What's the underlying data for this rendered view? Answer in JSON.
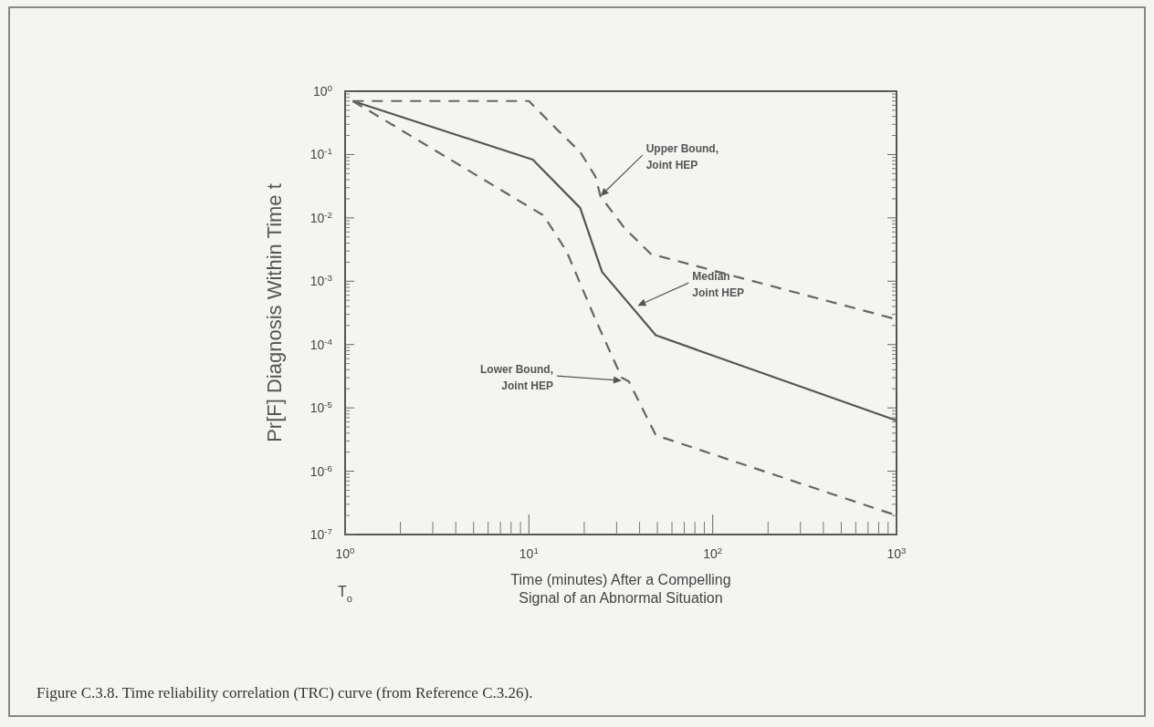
{
  "chart_data": {
    "type": "line",
    "xlabel": "Time (minutes) After a Compelling\nSignal of an Abnormal Situation",
    "ylabel": "Pr[F] Diagnosis Within Time t",
    "log": "xy",
    "grid": false,
    "xlim": [
      1,
      1000
    ],
    "ylim": [
      1e-07,
      1
    ],
    "xticks": [
      {
        "value": 1,
        "label": "10$^{0}$"
      },
      {
        "value": 10,
        "label": "10$^{1}$"
      },
      {
        "value": 100,
        "label": "10$^{2}$"
      },
      {
        "value": 1000,
        "label": "10$^{3}$"
      }
    ],
    "yticks": [
      {
        "value": 1e-07,
        "label": "10$^{-7}$"
      },
      {
        "value": 1e-06,
        "label": "10$^{-6}$"
      },
      {
        "value": 1e-05,
        "label": "10$^{-5}$"
      },
      {
        "value": 0.0001,
        "label": "10$^{-4}$"
      },
      {
        "value": 0.001,
        "label": "10$^{-3}$"
      },
      {
        "value": 0.01,
        "label": "10$^{-2}$"
      },
      {
        "value": 0.1,
        "label": "10$^{-1}$"
      },
      {
        "value": 1,
        "label": "10$^{0}$"
      }
    ],
    "series": [
      {
        "color": "#555555",
        "line_style": "solid",
        "x": [
          1.1,
          10.5,
          19,
          25,
          49,
          1000
        ],
        "values": [
          0.7,
          0.083,
          0.0144,
          0.0014,
          0.00014,
          6.3e-06
        ]
      },
      {
        "color": "#666666",
        "line_style": "dashed",
        "x": [
          1.1,
          10,
          14,
          19,
          23,
          24.5,
          33,
          46,
          1000
        ],
        "values": [
          0.7,
          0.7,
          0.26,
          0.11,
          0.045,
          0.022,
          0.007,
          0.0027,
          0.00025
        ]
      },
      {
        "color": "#666666",
        "line_style": "dashed",
        "x": [
          1.1,
          10,
          12,
          16,
          23,
          32,
          35,
          49,
          1000
        ],
        "values": [
          0.7,
          0.015,
          0.011,
          0.003,
          0.00025,
          3e-05,
          2.6e-05,
          3.7e-06,
          2e-07
        ]
      }
    ],
    "annotations": [
      "Upper Bound,\nJoint HEP",
      {
        "text": "Median\nJoint HEP",
        "x": 39,
        "y": 0.00041
      },
      {
        "text": "Lower Bound,\nJoint HEP",
        "x": 32,
        "y": 2.7e-05
      },
      "T$_{o}$",
      "Figure C.3.8. Time reliability correlation (TRC) curve (from Reference C.3.26)."
    ]
  }
}
